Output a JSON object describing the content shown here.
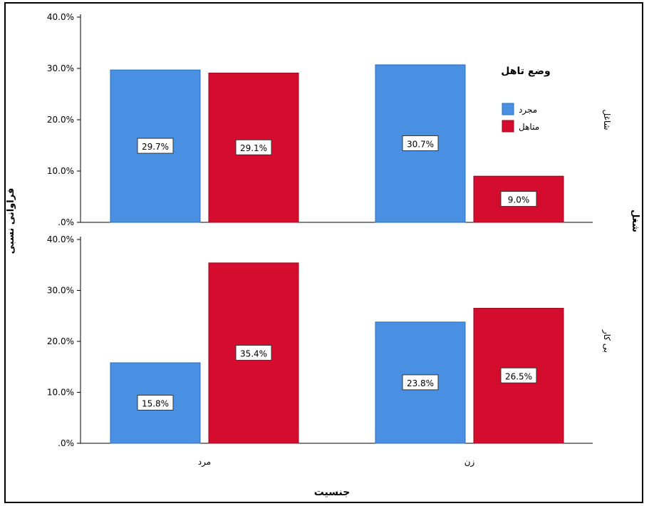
{
  "chart_data": {
    "type": "bar",
    "categories": [
      "مرد",
      "زن"
    ],
    "xlabel": "جنسیت",
    "ylabel": "فراوانی نسبی",
    "row_variable_label": "شغل",
    "ylim": [
      0,
      40
    ],
    "y_ticks": [
      "40.0%",
      "30.0%",
      "20.0%",
      "10.0%",
      ".0%"
    ],
    "legend": {
      "title": "وضع تاهل",
      "position": "top-right",
      "entries": [
        "مجرد",
        "متاهل"
      ]
    },
    "panels": [
      {
        "label": "شاغل",
        "series": [
          {
            "name": "مجرد",
            "values": [
              29.7,
              30.7
            ],
            "labels": [
              "29.7%",
              "30.7%"
            ]
          },
          {
            "name": "متاهل",
            "values": [
              29.1,
              9.0
            ],
            "labels": [
              "29.1%",
              "9.0%"
            ]
          }
        ]
      },
      {
        "label": "بی کار",
        "series": [
          {
            "name": "مجرد",
            "values": [
              15.8,
              23.8
            ],
            "labels": [
              "15.8%",
              "23.8%"
            ]
          },
          {
            "name": "متاهل",
            "values": [
              35.4,
              26.5
            ],
            "labels": [
              "35.4%",
              "26.5%"
            ]
          }
        ]
      }
    ],
    "colors": {
      "مجرد": "#4a90e2",
      "متاهل": "#d40c2d"
    }
  }
}
